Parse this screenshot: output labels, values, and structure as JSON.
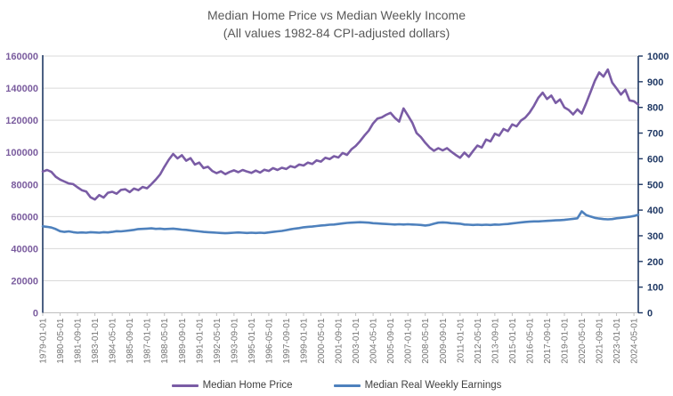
{
  "title": {
    "line1": "Median Home Price vs Median Weekly Income",
    "line2": "(All values 1982-84 CPI-adjusted dollars)"
  },
  "legend": {
    "items": [
      {
        "label": "Median Home Price",
        "color": "#7A5CA5"
      },
      {
        "label": "Median Real Weekly Earnings",
        "color": "#4E81BD"
      }
    ]
  },
  "colors": {
    "home_price_line": "#7A5CA5",
    "earnings_line": "#4E81BD",
    "left_axis_labels": "#7A5C9E",
    "right_axis": "#1F3864",
    "left_axis_line": "#1F3864",
    "gridline": "#D9D9D9",
    "bottom_axis_line": "#BFBFBF",
    "x_labels": "#757575",
    "title_text": "#595959"
  },
  "chart_data": {
    "type": "line",
    "title": "Median Home Price vs Median Weekly Income",
    "subtitle": "(All values 1982-84 CPI-adjusted dollars)",
    "x_start": "1979-01",
    "x_step_months": 4,
    "left_axis": {
      "min": 0,
      "max": 160000,
      "step": 20000,
      "tick_labels": [
        "0",
        "20000",
        "40000",
        "60000",
        "80000",
        "100000",
        "120000",
        "140000",
        "160000"
      ]
    },
    "right_axis": {
      "min": 0,
      "max": 1000,
      "step": 100,
      "tick_labels": [
        "0",
        "100",
        "200",
        "300",
        "400",
        "500",
        "600",
        "700",
        "800",
        "900",
        "1000"
      ]
    },
    "x_tick_labels": [
      "1979-01-01",
      "1980-05-01",
      "1981-09-01",
      "1983-01-01",
      "1984-05-01",
      "1985-09-01",
      "1987-01-01",
      "1988-05-01",
      "1989-09-01",
      "1991-01-01",
      "1992-05-01",
      "1993-09-01",
      "1995-01-01",
      "1996-05-01",
      "1997-09-01",
      "1999-01-01",
      "2000-05-01",
      "2001-09-01",
      "2003-01-01",
      "2004-05-01",
      "2005-09-01",
      "2007-01-01",
      "2008-05-01",
      "2009-09-01",
      "2011-01-01",
      "2012-05-01",
      "2013-09-01",
      "2015-01-01",
      "2016-05-01",
      "2017-09-01",
      "2019-01-01",
      "2020-05-01",
      "2021-09-01",
      "2023-01-01",
      "2024-05-01"
    ],
    "grid": true,
    "legend_position": "bottom",
    "series": [
      {
        "name": "Median Home Price",
        "axis": "left",
        "color": "#7A5CA5",
        "values": [
          88000,
          89000,
          87800,
          84800,
          83000,
          81800,
          80600,
          80200,
          78200,
          76400,
          75600,
          72000,
          70600,
          73400,
          71800,
          74800,
          75400,
          74200,
          76600,
          77000,
          75200,
          77400,
          76400,
          78400,
          77600,
          80200,
          83000,
          86200,
          91000,
          95400,
          99000,
          96200,
          98200,
          94800,
          96400,
          92400,
          93600,
          90200,
          91000,
          88400,
          87000,
          88200,
          86400,
          87800,
          88800,
          87600,
          89000,
          88000,
          87200,
          88600,
          87400,
          89200,
          88400,
          90200,
          89000,
          90400,
          89600,
          91400,
          90600,
          92400,
          91800,
          93600,
          92800,
          95000,
          94200,
          96600,
          95800,
          97600,
          96800,
          99600,
          98400,
          101800,
          104000,
          107000,
          110500,
          113500,
          118000,
          121000,
          121800,
          123400,
          124600,
          121500,
          119200,
          127400,
          123000,
          118500,
          112000,
          109500,
          106000,
          103000,
          101000,
          102600,
          101200,
          102600,
          100400,
          98400,
          96600,
          99800,
          97200,
          100800,
          104200,
          103000,
          108000,
          106800,
          111600,
          110400,
          114600,
          113200,
          117400,
          116200,
          119800,
          121600,
          124800,
          129000,
          134000,
          137200,
          133200,
          135400,
          130800,
          133000,
          128000,
          126400,
          123600,
          126800,
          124200,
          130500,
          137500,
          144500,
          149800,
          147200,
          151600,
          143500,
          139800,
          136000,
          139000,
          132400,
          131800,
          129800
        ]
      },
      {
        "name": "Median Real Weekly Earnings",
        "axis": "right",
        "color": "#4E81BD",
        "values": [
          337,
          335,
          332,
          326,
          318,
          315,
          317,
          314,
          312,
          313,
          312,
          314,
          313,
          312,
          314,
          313,
          315,
          318,
          317,
          319,
          321,
          323,
          326,
          327,
          328,
          329,
          327,
          328,
          326,
          327,
          328,
          326,
          324,
          323,
          321,
          319,
          317,
          315,
          314,
          313,
          312,
          311,
          310,
          311,
          312,
          313,
          312,
          311,
          312,
          311,
          312,
          311,
          313,
          315,
          317,
          319,
          322,
          325,
          328,
          330,
          333,
          335,
          336,
          338,
          340,
          341,
          343,
          344,
          346,
          348,
          350,
          351,
          352,
          353,
          352,
          351,
          349,
          348,
          347,
          346,
          345,
          344,
          345,
          344,
          345,
          344,
          343,
          342,
          340,
          342,
          347,
          351,
          352,
          351,
          349,
          348,
          347,
          344,
          343,
          342,
          343,
          342,
          343,
          342,
          344,
          343,
          345,
          346,
          348,
          350,
          352,
          354,
          355,
          356,
          356,
          357,
          358,
          359,
          360,
          361,
          362,
          364,
          366,
          368,
          395,
          381,
          375,
          370,
          367,
          365,
          364,
          365,
          368,
          370,
          372,
          374,
          377,
          382
        ]
      }
    ]
  }
}
